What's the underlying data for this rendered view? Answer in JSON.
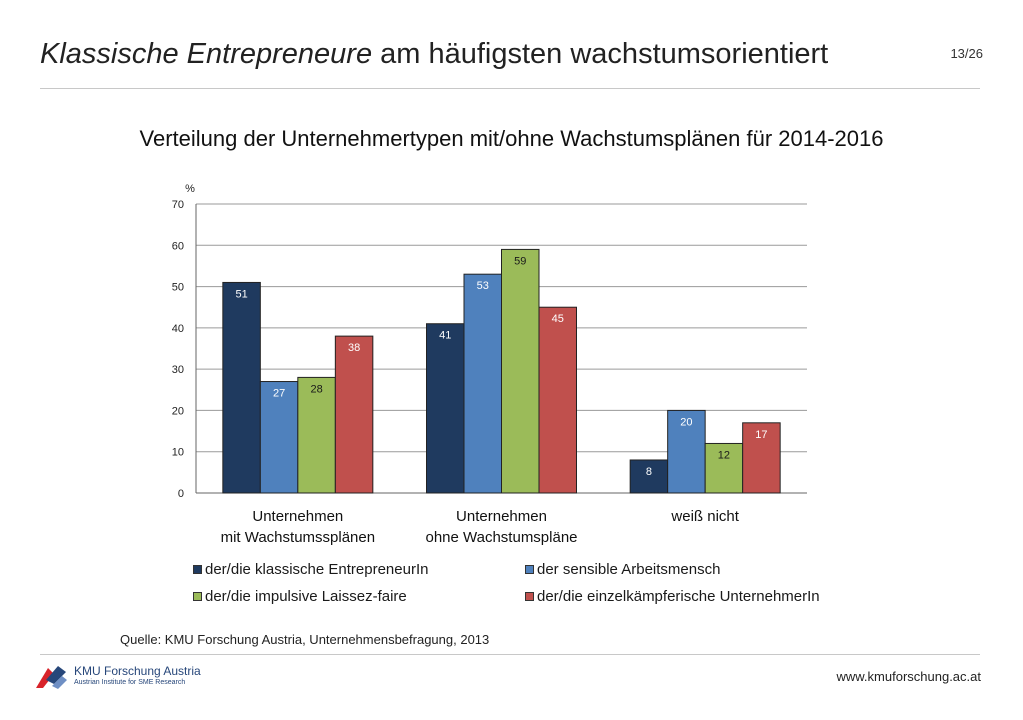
{
  "header": {
    "title_emphasis": "Klassische Entrepreneure",
    "title_rest": " am häufigsten wachstumsorientiert",
    "page_number": "13/26"
  },
  "colors": {
    "klassisch": "#1f3a5f",
    "sensibel": "#4f81bd",
    "impulsiv": "#9bbb59",
    "einzel": "#c0504d",
    "rule": "#c8c8c8"
  },
  "chart_data": {
    "type": "bar",
    "title": "Verteilung der Unternehmertypen mit/ohne Wachstumsplänen für 2014-2016",
    "ylabel": "%",
    "ylim": [
      0,
      70
    ],
    "yticks": [
      0,
      10,
      20,
      30,
      40,
      50,
      60,
      70
    ],
    "grid": true,
    "legend_position": "bottom",
    "categories": [
      [
        "Unternehmen",
        "mit Wachstumssplänen"
      ],
      [
        "Unternehmen",
        "ohne Wachstumspläne"
      ],
      [
        "weiß nicht"
      ]
    ],
    "series": [
      {
        "name": "der/die klassische EntrepreneurIn",
        "color": "#1f3a5f",
        "values": [
          51,
          41,
          8
        ]
      },
      {
        "name": "der sensible Arbeitsmensch",
        "color": "#4f81bd",
        "values": [
          27,
          53,
          20
        ]
      },
      {
        "name": "der/die impulsive Laissez-faire",
        "color": "#9bbb59",
        "values": [
          28,
          59,
          12
        ]
      },
      {
        "name": "der/die einzelkämpferische UnternehmerIn",
        "color": "#c0504d",
        "values": [
          38,
          45,
          17
        ]
      }
    ]
  },
  "footer": {
    "source": "Quelle: KMU Forschung Austria, Unternehmensbefragung, 2013",
    "logo_name": "KMU Forschung Austria",
    "logo_sub": "Austrian Institute for SME Research",
    "url": "www.kmuforschung.ac.at"
  }
}
